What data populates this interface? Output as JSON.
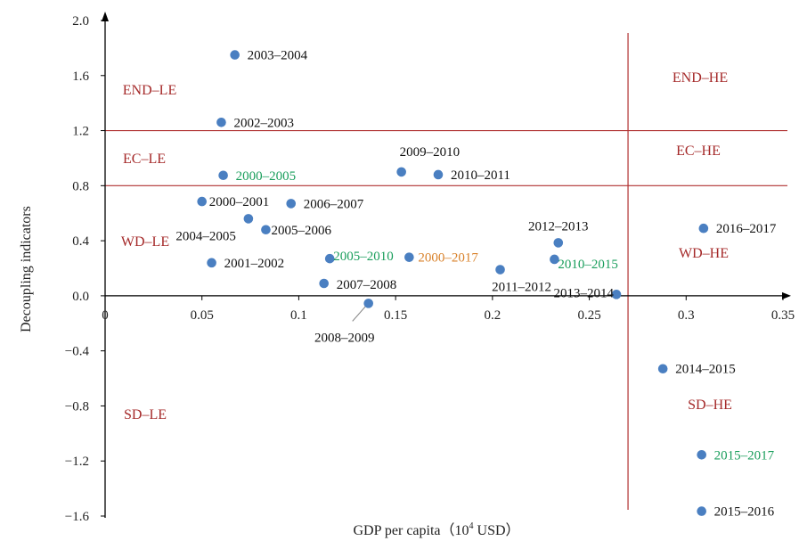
{
  "chart_data": {
    "type": "scatter",
    "xlabel_main": "GDP per capita（10",
    "xlabel_sup": "4",
    "xlabel_end": " USD）",
    "ylabel": "Decoupling indicators",
    "xlim": [
      0,
      0.35
    ],
    "ylim": [
      -1.6,
      2.0
    ],
    "xticks": [
      "0",
      "0.05",
      "0.1",
      "0.15",
      "0.2",
      "0.25",
      "0.3",
      "0.35"
    ],
    "yticks": [
      "2.0",
      "1.6",
      "1.2",
      "0.8",
      "0.4",
      "0.0",
      "-0.4",
      "-0.8",
      "-1.2",
      "-1.6"
    ],
    "grid": false,
    "thresholds": {
      "x": 0.27,
      "y": [
        1.2,
        0.8
      ]
    },
    "regions": [
      "END–LE",
      "EC–LE",
      "WD–LE",
      "SD–LE",
      "END–HE",
      "EC–HE",
      "WD–HE",
      "SD–HE"
    ],
    "colors": {
      "point": "#4a7fc1",
      "line": "#b03030",
      "region": "#a52a2a",
      "black_label": "#111111",
      "green_label": "#1a9e5c",
      "orange_label": "#d9822b"
    },
    "points": [
      {
        "label": "2003–2004",
        "x": 0.067,
        "y": 1.75,
        "color": "black"
      },
      {
        "label": "2002–2003",
        "x": 0.06,
        "y": 1.26,
        "color": "black"
      },
      {
        "label": "2000–2005",
        "x": 0.061,
        "y": 0.875,
        "color": "green"
      },
      {
        "label": "2009–2010",
        "x": 0.153,
        "y": 0.9,
        "color": "black"
      },
      {
        "label": "2010–2011",
        "x": 0.172,
        "y": 0.88,
        "color": "black"
      },
      {
        "label": "2000–2001",
        "x": 0.05,
        "y": 0.685,
        "color": "black"
      },
      {
        "label": "2006–2007",
        "x": 0.096,
        "y": 0.67,
        "color": "black"
      },
      {
        "label": "2004–2005",
        "x": 0.074,
        "y": 0.56,
        "color": "black"
      },
      {
        "label": "2005–2006",
        "x": 0.083,
        "y": 0.48,
        "color": "black"
      },
      {
        "label": "2016–2017",
        "x": 0.309,
        "y": 0.49,
        "color": "black"
      },
      {
        "label": "2012–2013",
        "x": 0.234,
        "y": 0.385,
        "color": "black"
      },
      {
        "label": "2005–2010",
        "x": 0.116,
        "y": 0.27,
        "color": "green"
      },
      {
        "label": "2000–2017",
        "x": 0.157,
        "y": 0.28,
        "color": "orange"
      },
      {
        "label": "2001–2002",
        "x": 0.055,
        "y": 0.24,
        "color": "black"
      },
      {
        "label": "2010–2015",
        "x": 0.232,
        "y": 0.265,
        "color": "green"
      },
      {
        "label": "2011–2012",
        "x": 0.204,
        "y": 0.19,
        "color": "black"
      },
      {
        "label": "2007–2008",
        "x": 0.113,
        "y": 0.09,
        "color": "black"
      },
      {
        "label": "2013–2014",
        "x": 0.264,
        "y": 0.01,
        "color": "black"
      },
      {
        "label": "2008–2009",
        "x": 0.136,
        "y": -0.055,
        "color": "black"
      },
      {
        "label": "2014–2015",
        "x": 0.288,
        "y": -0.53,
        "color": "black"
      },
      {
        "label": "2015–2017",
        "x": 0.308,
        "y": -1.155,
        "color": "green"
      },
      {
        "label": "2015–2016",
        "x": 0.308,
        "y": -1.565,
        "color": "black"
      }
    ]
  }
}
